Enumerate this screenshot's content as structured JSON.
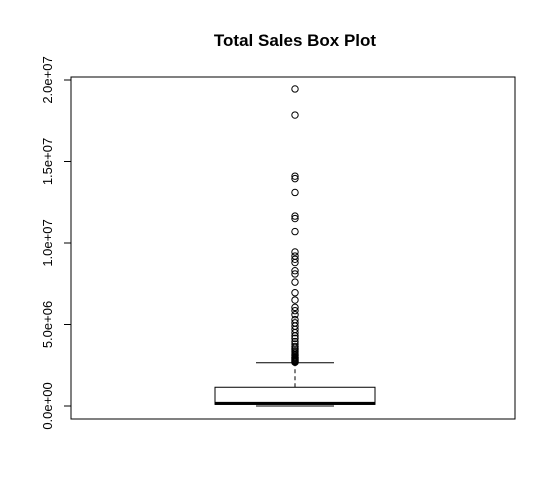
{
  "chart_data": {
    "type": "box",
    "title": "Total Sales  Box Plot",
    "xlabel": "",
    "ylabel": "",
    "ylim": [
      0,
      20000000
    ],
    "yticks": [
      0,
      5000000,
      10000000,
      15000000,
      20000000
    ],
    "ytick_labels": [
      "0.0e+00",
      "5.0e+06",
      "1.0e+07",
      "1.5e+07",
      "2.0e+07"
    ],
    "grid": false,
    "box": {
      "min": 0,
      "q1": 100000,
      "median": 160000,
      "q3": 1150000,
      "whisker_low": 0,
      "whisker_high": 2650000
    },
    "outliers": [
      2680000,
      2720000,
      2760000,
      2800000,
      2850000,
      2900000,
      2950000,
      3000000,
      3080000,
      3150000,
      3250000,
      3350000,
      3450000,
      3550000,
      3650000,
      3800000,
      3950000,
      4150000,
      4300000,
      4500000,
      4700000,
      4900000,
      5100000,
      5300000,
      5600000,
      5850000,
      6050000,
      6500000,
      6950000,
      7600000,
      8100000,
      8300000,
      8800000,
      9000000,
      9200000,
      9450000,
      10700000,
      11500000,
      11650000,
      13100000,
      13950000,
      14100000,
      17850000,
      19450000
    ]
  }
}
